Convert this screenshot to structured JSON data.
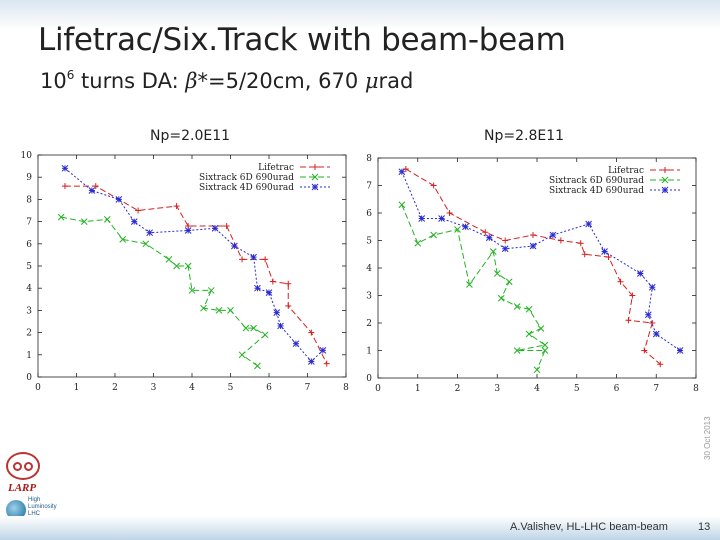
{
  "slide": {
    "title": "Lifetrac/Six.Track with beam-beam",
    "subtitle_pre": "10",
    "subtitle_sup": "6",
    "subtitle_mid": " turns DA: ",
    "beta_symbol": "β",
    "subtitle_mid2": "*=5/20cm, 670 ",
    "mu_symbol": "μ",
    "subtitle_post": "rad",
    "date_vertical": "30 Oct 2013",
    "logo_text_larp": "LARP",
    "logo_text_hl": [
      "High",
      "Luminosity",
      "LHC"
    ],
    "footer_author": "A.Valishev, HL-LHC beam-beam",
    "footer_page": "13"
  },
  "colors": {
    "lifetrac": "#d62020",
    "sixtrack6d": "#22b322",
    "sixtrack4d": "#2a2ad0",
    "axis": "#222222"
  },
  "chart_data": [
    {
      "type": "line",
      "title": "Np=2.0E11",
      "xlabel": "",
      "ylabel": "",
      "xlim": [
        0,
        8
      ],
      "ylim": [
        0,
        10
      ],
      "xticks": [
        0,
        1,
        2,
        3,
        4,
        5,
        6,
        7,
        8
      ],
      "yticks": [
        0,
        1,
        2,
        3,
        4,
        5,
        6,
        7,
        8,
        9,
        10
      ],
      "legend_position": "top-right",
      "series": [
        {
          "name": "Lifetrac",
          "style": "dashed",
          "marker": "plus",
          "points": [
            [
              0.7,
              8.6
            ],
            [
              1.5,
              8.6
            ],
            [
              2.6,
              7.5
            ],
            [
              3.6,
              7.7
            ],
            [
              3.9,
              6.8
            ],
            [
              4.9,
              6.8
            ],
            [
              5.3,
              5.3
            ],
            [
              5.9,
              5.3
            ],
            [
              6.1,
              4.3
            ],
            [
              6.5,
              4.2
            ],
            [
              6.5,
              3.2
            ],
            [
              7.1,
              2.0
            ],
            [
              7.5,
              0.6
            ]
          ]
        },
        {
          "name": "Sixtrack 6D 690urad",
          "style": "dashed",
          "marker": "cross",
          "points": [
            [
              0.6,
              7.2
            ],
            [
              1.2,
              7.0
            ],
            [
              1.8,
              7.1
            ],
            [
              2.2,
              6.2
            ],
            [
              2.8,
              6.0
            ],
            [
              3.4,
              5.3
            ],
            [
              3.6,
              5.0
            ],
            [
              3.9,
              5.0
            ],
            [
              4.0,
              3.9
            ],
            [
              4.5,
              3.9
            ],
            [
              4.3,
              3.1
            ],
            [
              4.7,
              3.0
            ],
            [
              5.0,
              3.0
            ],
            [
              5.4,
              2.2
            ],
            [
              5.6,
              2.2
            ],
            [
              5.9,
              1.9
            ],
            [
              5.3,
              1.0
            ],
            [
              5.7,
              0.5
            ]
          ]
        },
        {
          "name": "Sixtrack 4D 690urad",
          "style": "dotted",
          "marker": "star",
          "points": [
            [
              0.7,
              9.4
            ],
            [
              1.4,
              8.4
            ],
            [
              2.1,
              8.0
            ],
            [
              2.5,
              7.0
            ],
            [
              2.9,
              6.5
            ],
            [
              3.9,
              6.6
            ],
            [
              4.6,
              6.7
            ],
            [
              5.1,
              5.9
            ],
            [
              5.6,
              5.4
            ],
            [
              5.7,
              4.0
            ],
            [
              6.0,
              3.8
            ],
            [
              6.2,
              2.9
            ],
            [
              6.3,
              2.3
            ],
            [
              6.7,
              1.5
            ],
            [
              7.1,
              0.7
            ],
            [
              7.4,
              1.2
            ]
          ]
        }
      ]
    },
    {
      "type": "line",
      "title": "Np=2.8E11",
      "xlabel": "",
      "ylabel": "",
      "xlim": [
        0,
        8
      ],
      "ylim": [
        0,
        8
      ],
      "xticks": [
        0,
        1,
        2,
        3,
        4,
        5,
        6,
        7,
        8
      ],
      "yticks": [
        0,
        1,
        2,
        3,
        4,
        5,
        6,
        7,
        8
      ],
      "legend_position": "top-right",
      "series": [
        {
          "name": "Lifetrac",
          "style": "dashed",
          "marker": "plus",
          "points": [
            [
              0.7,
              7.6
            ],
            [
              1.4,
              7.0
            ],
            [
              1.8,
              6.0
            ],
            [
              2.7,
              5.3
            ],
            [
              3.2,
              5.0
            ],
            [
              3.9,
              5.2
            ],
            [
              4.6,
              5.0
            ],
            [
              5.1,
              4.9
            ],
            [
              5.2,
              4.5
            ],
            [
              5.8,
              4.4
            ],
            [
              6.1,
              3.5
            ],
            [
              6.4,
              3.0
            ],
            [
              6.3,
              2.1
            ],
            [
              6.9,
              2.0
            ],
            [
              6.7,
              1.0
            ],
            [
              7.1,
              0.5
            ]
          ]
        },
        {
          "name": "Sixtrack 6D 690urad",
          "style": "dashed",
          "marker": "cross",
          "points": [
            [
              0.6,
              6.3
            ],
            [
              1.0,
              4.9
            ],
            [
              1.4,
              5.2
            ],
            [
              2.0,
              5.4
            ],
            [
              2.3,
              3.4
            ],
            [
              2.9,
              4.6
            ],
            [
              3.0,
              3.8
            ],
            [
              3.3,
              3.5
            ],
            [
              3.1,
              2.9
            ],
            [
              3.5,
              2.6
            ],
            [
              3.8,
              2.5
            ],
            [
              4.1,
              1.8
            ],
            [
              3.8,
              1.6
            ],
            [
              4.2,
              1.2
            ],
            [
              3.5,
              1.0
            ],
            [
              4.2,
              1.0
            ],
            [
              4.0,
              0.3
            ]
          ]
        },
        {
          "name": "Sixtrack 4D 690urad",
          "style": "dotted",
          "marker": "star",
          "points": [
            [
              0.6,
              7.5
            ],
            [
              1.1,
              5.8
            ],
            [
              1.6,
              5.8
            ],
            [
              2.2,
              5.5
            ],
            [
              2.8,
              5.1
            ],
            [
              3.2,
              4.7
            ],
            [
              3.9,
              4.8
            ],
            [
              4.4,
              5.2
            ],
            [
              5.3,
              5.6
            ],
            [
              5.7,
              4.6
            ],
            [
              6.6,
              3.8
            ],
            [
              6.9,
              3.3
            ],
            [
              6.8,
              2.3
            ],
            [
              7.0,
              1.6
            ],
            [
              7.6,
              1.0
            ]
          ]
        }
      ]
    }
  ]
}
